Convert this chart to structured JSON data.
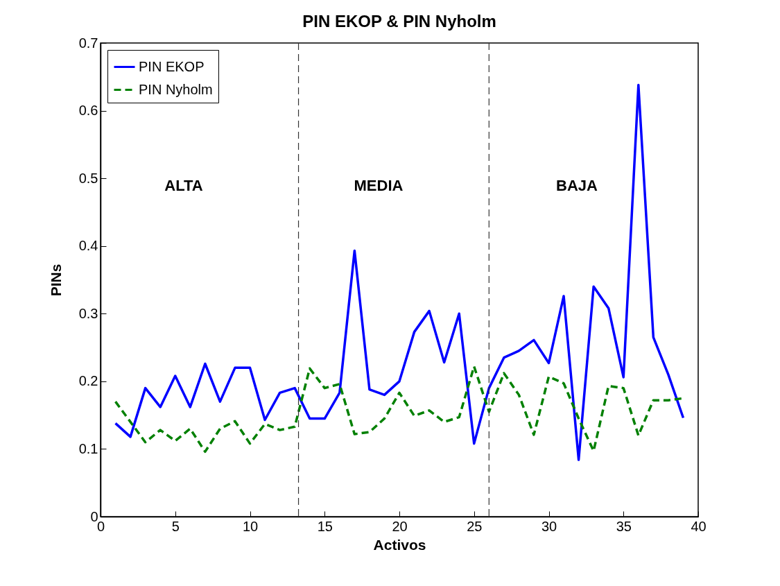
{
  "chart_data": {
    "type": "line",
    "title": "PIN EKOP & PIN Nyholm",
    "xlabel": "Activos",
    "ylabel": "PINs",
    "x": [
      1,
      2,
      3,
      4,
      5,
      6,
      7,
      8,
      9,
      10,
      11,
      12,
      13,
      14,
      15,
      16,
      17,
      18,
      19,
      20,
      21,
      22,
      23,
      24,
      25,
      26,
      27,
      28,
      29,
      30,
      31,
      32,
      33,
      34,
      35,
      36,
      37,
      38,
      39
    ],
    "series": [
      {
        "name": "PIN EKOP",
        "color": "#0000ff",
        "line_style": "solid",
        "values": [
          0.138,
          0.118,
          0.19,
          0.162,
          0.208,
          0.162,
          0.226,
          0.17,
          0.22,
          0.22,
          0.143,
          0.183,
          0.19,
          0.145,
          0.145,
          0.183,
          0.393,
          0.188,
          0.18,
          0.2,
          0.273,
          0.304,
          0.228,
          0.3,
          0.108,
          0.19,
          0.235,
          0.245,
          0.261,
          0.227,
          0.326,
          0.084,
          0.34,
          0.308,
          0.206,
          0.638,
          0.265,
          0.21,
          0.146
        ]
      },
      {
        "name": "PIN Nyholm",
        "color": "#008000",
        "line_style": "dashed",
        "values": [
          0.17,
          0.14,
          0.11,
          0.128,
          0.112,
          0.13,
          0.096,
          0.13,
          0.141,
          0.108,
          0.137,
          0.128,
          0.133,
          0.219,
          0.19,
          0.196,
          0.122,
          0.125,
          0.145,
          0.183,
          0.149,
          0.157,
          0.14,
          0.147,
          0.222,
          0.155,
          0.212,
          0.18,
          0.121,
          0.207,
          0.197,
          0.145,
          0.097,
          0.193,
          0.19,
          0.12,
          0.172,
          0.172,
          0.175
        ]
      }
    ],
    "xlim": [
      0,
      40
    ],
    "xticks": [
      0,
      5,
      10,
      15,
      20,
      25,
      30,
      35,
      40
    ],
    "ylim": [
      0,
      0.7
    ],
    "yticks": [
      0,
      0.1,
      0.2,
      0.3,
      0.4,
      0.5,
      0.6,
      0.7
    ],
    "ref_lines": [
      {
        "axis": "x",
        "value": 13.25,
        "color": "#333333",
        "line_style": "dashed"
      },
      {
        "axis": "x",
        "value": 26,
        "color": "#333333",
        "line_style": "dashed"
      }
    ],
    "annotations": [
      "ALTA",
      "MEDIA",
      "BAJA"
    ],
    "grid": false,
    "legend": "top left"
  }
}
